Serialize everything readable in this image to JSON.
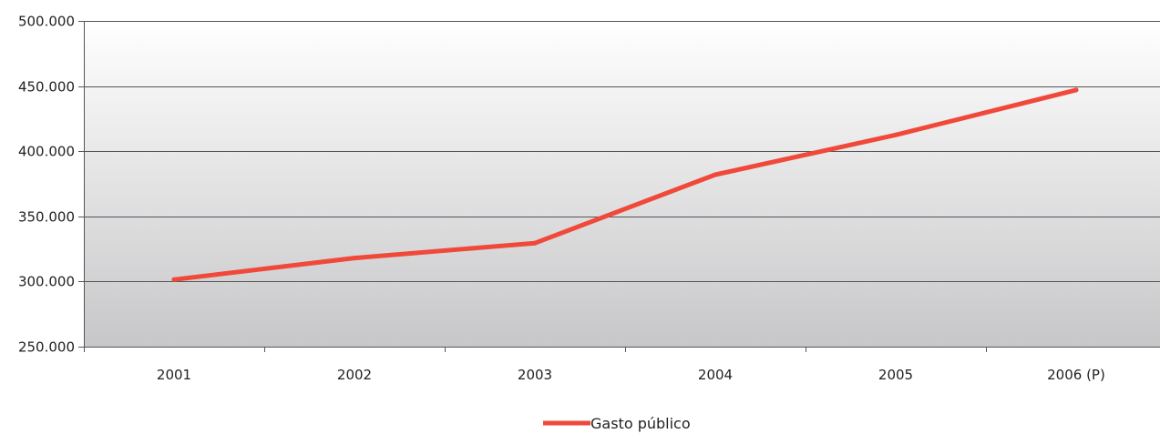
{
  "chart_data": {
    "type": "line",
    "categories": [
      "2001",
      "2002",
      "2003",
      "2004",
      "2005",
      "2006 (P)"
    ],
    "series": [
      {
        "name": "Gasto público",
        "values": [
          301500,
          318000,
          329500,
          382000,
          412500,
          447000
        ],
        "color": "#f0493a"
      }
    ],
    "yticks": [
      "250.000",
      "300.000",
      "350.000",
      "400.000",
      "450.000",
      "500.000"
    ],
    "ylim": [
      250000,
      500000
    ],
    "grid": true,
    "legend": "bottom-center",
    "background_gradient": [
      "#ffffff",
      "#c7c7c9"
    ]
  }
}
